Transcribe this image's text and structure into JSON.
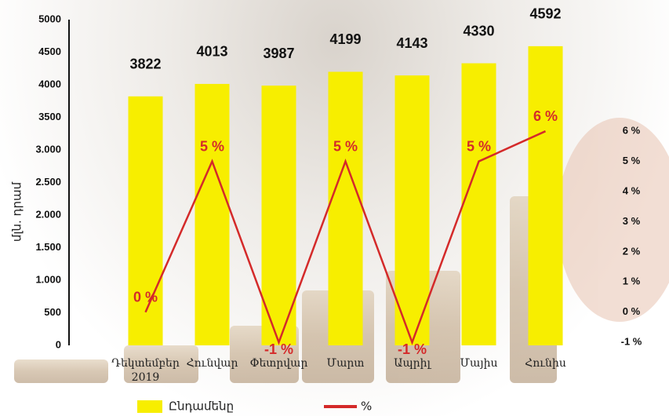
{
  "chart_data": {
    "type": "bar_line",
    "y_label": "մլն. դրամ",
    "categories": [
      "Դեկտեմբեր 2019",
      "Հունվար",
      "Փետրվար",
      "Մարտ",
      "Ապրիլ",
      "Մայիս",
      "Հունիս"
    ],
    "series": [
      {
        "name": "Ընդամենը",
        "type": "bar",
        "color": "#f7ee00",
        "values": [
          3822,
          4013,
          3987,
          4199,
          4143,
          4330,
          4592
        ]
      },
      {
        "name": "%",
        "type": "line",
        "axis": "y2",
        "color": "#d42a2a",
        "values": [
          0,
          5,
          -1,
          5,
          -1,
          5,
          6
        ],
        "value_labels": [
          "0 %",
          "5 %",
          "-1 %",
          "5 %",
          "-1 %",
          "5 %",
          "6 %"
        ]
      }
    ],
    "ylim": [
      0,
      5000
    ],
    "yticks": [
      0,
      500,
      {
        "value": 1000,
        "label": "1.000"
      },
      {
        "value": 1500,
        "label": "1.500"
      },
      {
        "value": 2000,
        "label": "2.000"
      },
      {
        "value": 2500,
        "label": "2.500"
      },
      {
        "value": 3000,
        "label": "3.000"
      },
      3500,
      4000,
      4500,
      5000
    ],
    "y2lim": [
      -1.1,
      9.7
    ],
    "y2ticks": [
      {
        "value": -1,
        "label": "-1 %"
      },
      {
        "value": 0,
        "label": "0 %"
      },
      {
        "value": 1,
        "label": "1 %"
      },
      {
        "value": 2,
        "label": "2 %"
      },
      {
        "value": 3,
        "label": "3 %"
      },
      {
        "value": 4,
        "label": "4 %"
      },
      {
        "value": 5,
        "label": "5 %"
      },
      {
        "value": 6,
        "label": "6 %"
      }
    ],
    "legend": "bottom"
  }
}
